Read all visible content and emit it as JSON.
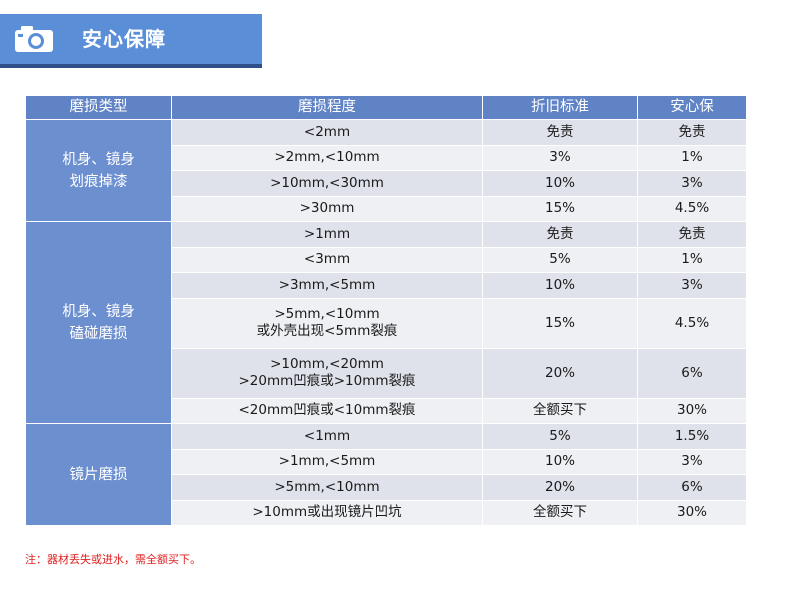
{
  "header": {
    "title": "安心保障",
    "icon": "camera-icon",
    "band_color": "#5a8fd8"
  },
  "table": {
    "columns": [
      "磨损类型",
      "磨损程度",
      "折旧标准",
      "安心保"
    ],
    "groups": [
      {
        "category": "机身、镜身\n划痕掉漆",
        "rows": [
          {
            "degree": "<2mm",
            "depreciation": "免责",
            "coverage": "免责"
          },
          {
            "degree": ">2mm,<10mm",
            "depreciation": "3%",
            "coverage": "1%"
          },
          {
            "degree": ">10mm,<30mm",
            "depreciation": "10%",
            "coverage": "3%"
          },
          {
            "degree": ">30mm",
            "depreciation": "15%",
            "coverage": "4.5%"
          }
        ]
      },
      {
        "category": "机身、镜身\n磕碰磨损",
        "rows": [
          {
            "degree": ">1mm",
            "depreciation": "免责",
            "coverage": "免责"
          },
          {
            "degree": "<3mm",
            "depreciation": "5%",
            "coverage": "1%"
          },
          {
            "degree": ">3mm,<5mm",
            "depreciation": "10%",
            "coverage": "3%"
          },
          {
            "degree": ">5mm,<10mm\n或外壳出现<5mm裂痕",
            "depreciation": "15%",
            "coverage": "4.5%"
          },
          {
            "degree": ">10mm,<20mm\n>20mm凹痕或>10mm裂痕",
            "depreciation": "20%",
            "coverage": "6%"
          },
          {
            "degree": "<20mm凹痕或<10mm裂痕",
            "depreciation": "全额买下",
            "coverage": "30%"
          }
        ]
      },
      {
        "category": "镜片磨损",
        "rows": [
          {
            "degree": "<1mm",
            "depreciation": "5%",
            "coverage": "1.5%"
          },
          {
            "degree": ">1mm,<5mm",
            "depreciation": "10%",
            "coverage": "3%"
          },
          {
            "degree": ">5mm,<10mm",
            "depreciation": "20%",
            "coverage": "6%"
          },
          {
            "degree": ">10mm或出现镜片凹坑",
            "depreciation": "全额买下",
            "coverage": "30%"
          }
        ]
      }
    ]
  },
  "note": "注：器材丢失或进水，需全额买下。",
  "colors": {
    "header_cell": "#5f83c4",
    "category_cell": "#6c8fcf",
    "row_odd": "#dfe2ea",
    "row_even": "#eff0f4",
    "note": "#e02020"
  }
}
